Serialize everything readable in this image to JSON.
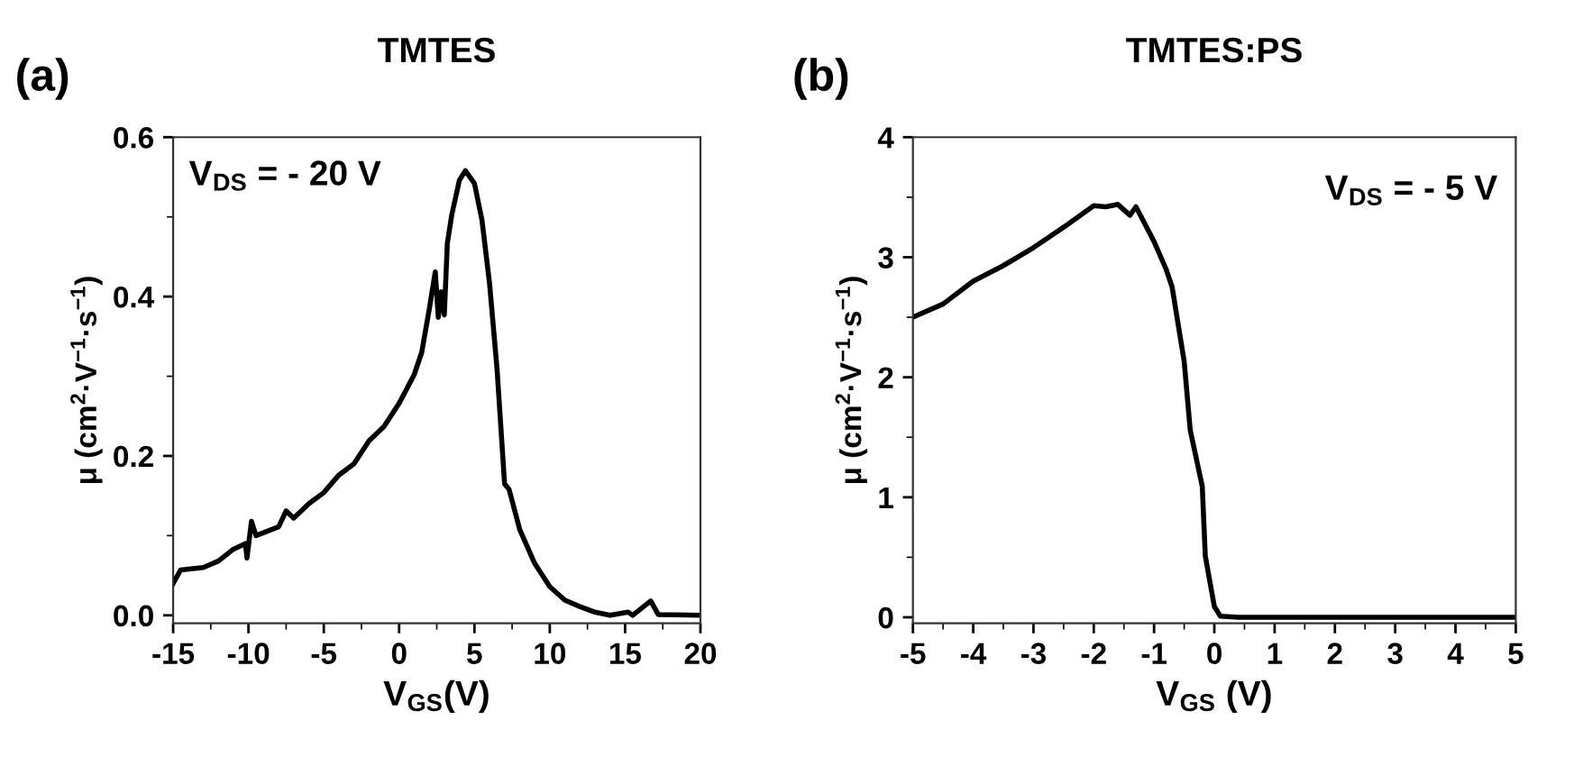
{
  "chart_data": [
    {
      "type": "line",
      "title": "TMTES",
      "xlabel": "V$_{GS}$(V)",
      "ylabel": "μ (cm$^{2}$·V$^{−1}$·s$^{−1}$)",
      "annotations": [
        "(a)",
        "V$_{DS}$ = - 20 V"
      ],
      "xlim": [
        -15,
        20
      ],
      "ylim": [
        -0.01,
        0.6
      ],
      "xticks": [
        -15,
        -10,
        -5,
        0,
        5,
        10,
        15,
        20
      ],
      "yticks": [
        {
          "value": 0,
          "label": "0.0"
        },
        0.2,
        0.4,
        0.6
      ],
      "grid": false,
      "legend": false,
      "series": [
        {
          "color": "#000000",
          "x": [
            -15,
            -14.5,
            -13,
            -12,
            -11,
            -10.2,
            -10.1,
            -9.8,
            -9.5,
            -8,
            -7.5,
            -7,
            -6,
            -5,
            -4,
            -3,
            -2,
            -1,
            0,
            1,
            1.5,
            2,
            2.4,
            2.6,
            2.8,
            3,
            3.2,
            3.5,
            4,
            4.4,
            5,
            5.5,
            6,
            6.5,
            7,
            7.3,
            8,
            9,
            10,
            11,
            12,
            13,
            14,
            15.2,
            15.5,
            16.7,
            17.2,
            20
          ],
          "values": [
            0.04,
            0.057,
            0.06,
            0.068,
            0.083,
            0.09,
            0.072,
            0.118,
            0.1,
            0.111,
            0.131,
            0.122,
            0.14,
            0.154,
            0.176,
            0.19,
            0.219,
            0.237,
            0.266,
            0.302,
            0.33,
            0.384,
            0.431,
            0.374,
            0.406,
            0.377,
            0.467,
            0.503,
            0.546,
            0.558,
            0.542,
            0.496,
            0.417,
            0.309,
            0.165,
            0.158,
            0.108,
            0.065,
            0.036,
            0.019,
            0.011,
            0.004,
            0,
            0.004,
            0,
            0.018,
            0.001,
            0
          ]
        }
      ]
    },
    {
      "type": "line",
      "title": "TMTES:PS",
      "xlabel": "V$_{GS}$ (V)",
      "ylabel": "μ (cm$^{2}$·V$^{−1}$·s$^{−1}$)",
      "annotations": [
        "(b)",
        "V$_{DS}$ = - 5 V"
      ],
      "xlim": [
        -5,
        5
      ],
      "ylim": [
        -0.05,
        4
      ],
      "xticks": [
        -5,
        -4,
        -3,
        -2,
        -1,
        0,
        1,
        2,
        3,
        4,
        5
      ],
      "yticks": [
        0,
        1,
        2,
        3,
        4
      ],
      "grid": false,
      "legend": false,
      "series": [
        {
          "color": "#000000",
          "x": [
            -5,
            -4.5,
            -4,
            -3.5,
            -3,
            -2.5,
            -2,
            -1.8,
            -1.6,
            -1.4,
            -1.3,
            -1,
            -0.8,
            -0.7,
            -0.5,
            -0.4,
            -0.2,
            -0.15,
            -0.1,
            0,
            0.1,
            0.4,
            5
          ],
          "values": [
            2.5,
            2.61,
            2.8,
            2.93,
            3.08,
            3.25,
            3.43,
            3.42,
            3.44,
            3.35,
            3.42,
            3.13,
            2.9,
            2.75,
            2.13,
            1.56,
            1.09,
            0.51,
            0.37,
            0.09,
            0.01,
            0,
            0
          ]
        }
      ]
    }
  ]
}
